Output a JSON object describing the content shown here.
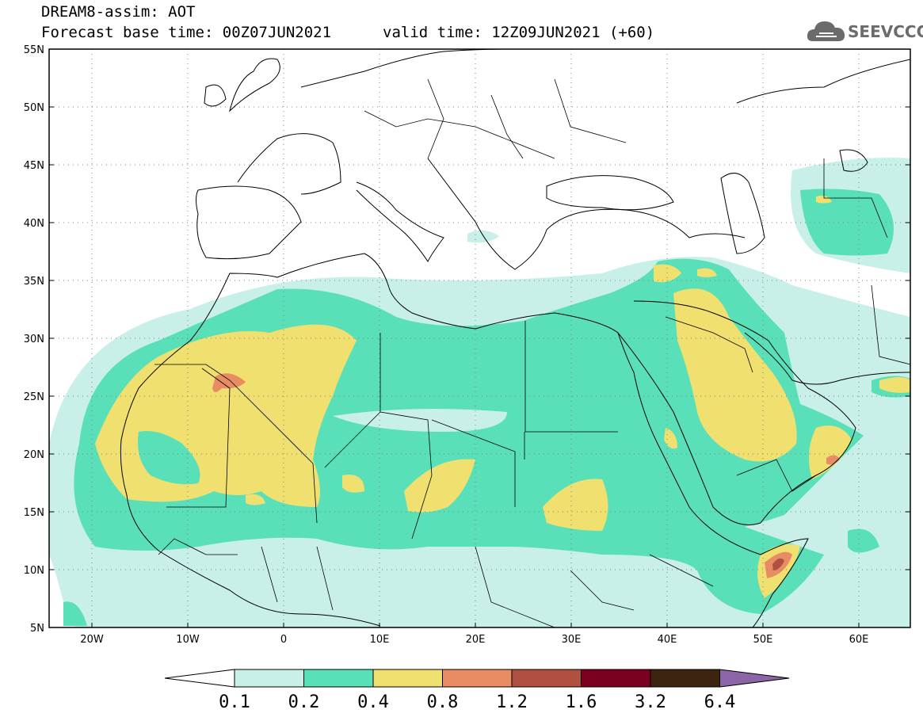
{
  "header": {
    "title": "DREAM8-assim: AOT",
    "base_time": "Forecast base time: 00Z07JUN2021",
    "valid_time": "valid time: 12Z09JUN2021 (+60)"
  },
  "logo": {
    "text": "SEEVCCC",
    "icon": "cloud-icon"
  },
  "axes": {
    "lat_labels": [
      "55N",
      "50N",
      "45N",
      "40N",
      "35N",
      "30N",
      "25N",
      "20N",
      "15N",
      "10N",
      "5N"
    ],
    "lon_labels": [
      "20W",
      "10W",
      "0",
      "10E",
      "20E",
      "30E",
      "40E",
      "50E",
      "60E"
    ],
    "lat_range": [
      5,
      55
    ],
    "lon_range": [
      -25,
      65
    ],
    "grid": "dotted"
  },
  "colorbar": {
    "labels": [
      "0.1",
      "0.2",
      "0.4",
      "0.8",
      "1.2",
      "1.6",
      "3.2",
      "6.4"
    ],
    "colors": [
      "#ffffff",
      "#c8f0e8",
      "#5ae0b8",
      "#f0e070",
      "#e88c64",
      "#b05040",
      "#7a0020",
      "#3c2410",
      "#8c64a8"
    ]
  }
}
